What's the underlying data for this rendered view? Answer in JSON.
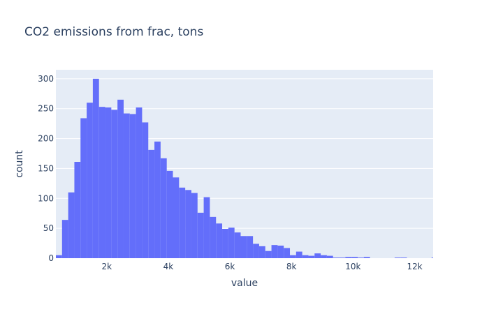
{
  "chart_data": {
    "type": "bar",
    "title": "CO2 emissions from frac, tons",
    "xlabel": "value",
    "ylabel": "count",
    "xlim": [
      350,
      12600
    ],
    "ylim": [
      0,
      315
    ],
    "bin_width": 200,
    "bin_start": 350,
    "x_ticks": [
      2000,
      4000,
      6000,
      8000,
      10000,
      12000
    ],
    "x_tick_labels": [
      "2k",
      "4k",
      "6k",
      "8k",
      "10k",
      "12k"
    ],
    "y_ticks": [
      0,
      50,
      100,
      150,
      200,
      250,
      300
    ],
    "y_tick_labels": [
      "0",
      "50",
      "100",
      "150",
      "200",
      "250",
      "300"
    ],
    "values": [
      5,
      64,
      110,
      161,
      234,
      260,
      300,
      253,
      252,
      248,
      265,
      242,
      241,
      252,
      227,
      181,
      195,
      167,
      146,
      135,
      118,
      114,
      109,
      76,
      102,
      69,
      58,
      49,
      51,
      43,
      37,
      37,
      24,
      20,
      12,
      22,
      21,
      17,
      5,
      11,
      5,
      4,
      8,
      5,
      4,
      1,
      1,
      2,
      2,
      1,
      2,
      0,
      0,
      0,
      0,
      1,
      1,
      0,
      0,
      0,
      0,
      1
    ],
    "bar_color": "#636efa",
    "plot_bgcolor": "#e5ecf6",
    "grid": true
  }
}
